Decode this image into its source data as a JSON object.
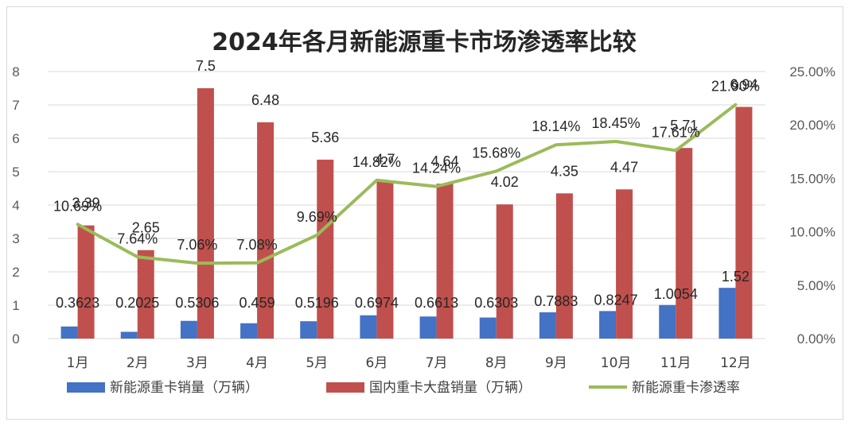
{
  "chart_data": {
    "type": "bar",
    "title": "2024年各月新能源重卡市场渗透率比较",
    "categories": [
      "1月",
      "2月",
      "3月",
      "4月",
      "5月",
      "6月",
      "7月",
      "8月",
      "9月",
      "10月",
      "11月",
      "12月"
    ],
    "series": [
      {
        "name": "新能源重卡销量（万辆）",
        "type": "bar",
        "axis": "left",
        "color": "#4472c4",
        "values": [
          0.3623,
          0.2025,
          0.5306,
          0.459,
          0.5196,
          0.6974,
          0.6613,
          0.6303,
          0.7883,
          0.8247,
          1.0054,
          1.52
        ],
        "labels": [
          "0.3623",
          "0.2025",
          "0.5306",
          "0.459",
          "0.5196",
          "0.6974",
          "0.6613",
          "0.6303",
          "0.7883",
          "0.8247",
          "1.0054",
          "1.52"
        ]
      },
      {
        "name": "国内重卡大盘销量（万辆）",
        "type": "bar",
        "axis": "left",
        "color": "#c0504d",
        "values": [
          3.39,
          2.65,
          7.5,
          6.48,
          5.36,
          4.7,
          4.64,
          4.02,
          4.35,
          4.47,
          5.71,
          6.94
        ],
        "labels": [
          "3.39",
          "2.65",
          "7.5",
          "6.48",
          "5.36",
          "4.7",
          "4.64",
          "4.02",
          "4.35",
          "4.47",
          "5.71",
          "6.94"
        ]
      },
      {
        "name": "新能源重卡渗透率",
        "type": "line",
        "axis": "right",
        "color": "#9bbb59",
        "values": [
          10.69,
          7.64,
          7.06,
          7.08,
          9.69,
          14.82,
          14.24,
          15.68,
          18.14,
          18.45,
          17.61,
          21.9
        ],
        "labels": [
          "10.69%",
          "7.64%",
          "7.06%",
          "7.08%",
          "9.69%",
          "14.82%",
          "14.24%",
          "15.68%",
          "18.14%",
          "18.45%",
          "17.61%",
          "21.90%"
        ]
      }
    ],
    "y_left": {
      "min": 0,
      "max": 8,
      "ticks": [
        "0",
        "1",
        "2",
        "3",
        "4",
        "5",
        "6",
        "7",
        "8"
      ]
    },
    "y_right": {
      "min": 0,
      "max": 25,
      "unit": "%",
      "ticks": [
        "0.00%",
        "5.00%",
        "10.00%",
        "15.00%",
        "20.00%",
        "25.00%"
      ]
    },
    "grid": true,
    "legend": "bottom"
  }
}
